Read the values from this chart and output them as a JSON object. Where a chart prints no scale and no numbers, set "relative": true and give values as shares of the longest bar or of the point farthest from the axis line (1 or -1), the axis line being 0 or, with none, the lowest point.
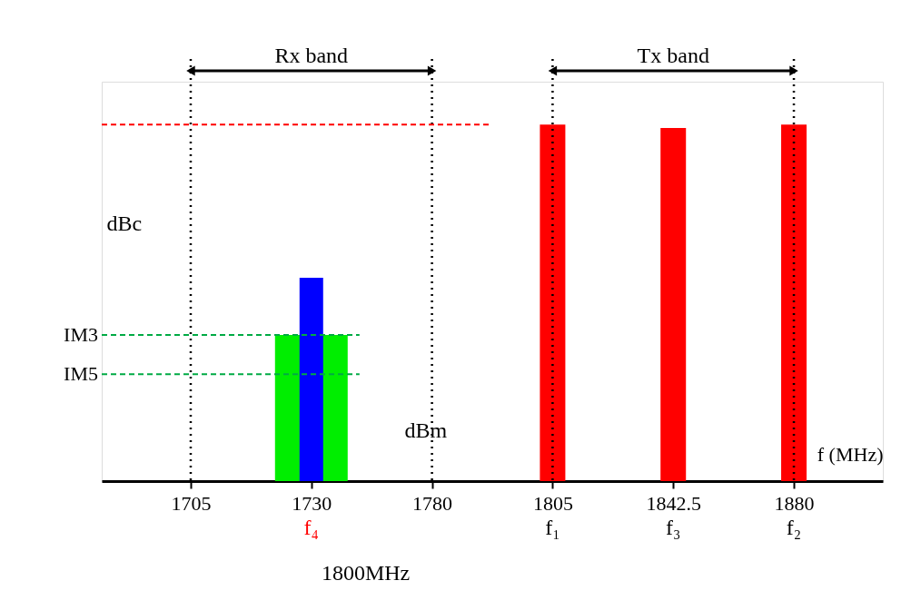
{
  "chart_data": {
    "type": "bar",
    "relative": true,
    "xlabel": "f (MHz)",
    "categories": [
      "1705",
      "1730",
      "1780",
      "1805",
      "1842.5",
      "1880"
    ],
    "series": [
      {
        "color": "#00ee00",
        "values": [
          null,
          0.41,
          null,
          null,
          null,
          null
        ]
      },
      {
        "color": "#0000ff",
        "values": [
          null,
          0.57,
          null,
          null,
          null,
          null
        ]
      },
      {
        "color": "#ff0000",
        "values": [
          null,
          null,
          null,
          1,
          0.99,
          1
        ]
      }
    ],
    "ref_lines": [
      {
        "axis": "x",
        "value": "1705",
        "line_style": "dotted",
        "color": "#000000"
      },
      {
        "axis": "x",
        "value": "1780",
        "line_style": "dotted",
        "color": "#000000"
      },
      {
        "axis": "x",
        "value": "1805",
        "line_style": "dotted",
        "color": "#000000"
      },
      {
        "axis": "x",
        "value": "1880",
        "line_style": "dotted",
        "color": "#000000"
      },
      {
        "axis": "y",
        "value": 1,
        "line_style": "dashed",
        "color": "#ff0000"
      },
      {
        "axis": "y",
        "value": 0.41,
        "label": "IM3",
        "line_style": "dashed",
        "color": "#00aa44"
      },
      {
        "axis": "y",
        "value": 0.3,
        "label": "IM5",
        "line_style": "dashed",
        "color": "#00aa44"
      }
    ],
    "annotations": [
      "Rx band",
      "Tx band",
      "f₄",
      "f₁",
      "f₃",
      "f₂",
      "dBc",
      "dBm",
      "1800MHz"
    ]
  }
}
